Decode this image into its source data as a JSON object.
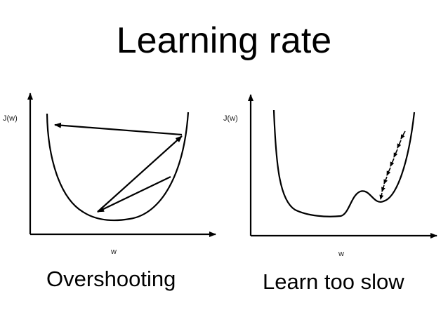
{
  "title": "Learning rate",
  "panels": [
    {
      "caption": "Overshooting",
      "y_axis_label": "J(w)",
      "x_axis_label": "w"
    },
    {
      "caption": "Learn too slow",
      "y_axis_label": "J(w)",
      "x_axis_label": "w"
    }
  ],
  "colors": {
    "background": "#ffffff",
    "ink": "#000000"
  }
}
